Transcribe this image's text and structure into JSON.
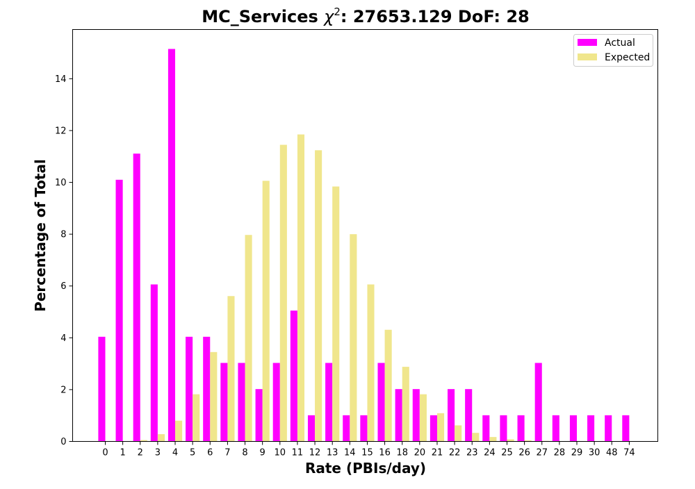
{
  "chart_data": {
    "type": "bar",
    "title": "MC_Services χ²: 27653.129 DoF: 28",
    "title_parts": {
      "prefix": "MC_Services ",
      "symbol": "χ",
      "superscript": "2",
      "suffix": ": 27653.129 DoF: 28"
    },
    "xlabel": "Rate (PBIs/day)",
    "ylabel": "Percentage of Total",
    "ylim": [
      0,
      15.9
    ],
    "yticks": [
      0,
      2,
      4,
      6,
      8,
      10,
      12,
      14
    ],
    "grid": false,
    "legend_position": "top-right",
    "categories": [
      "0",
      "1",
      "2",
      "3",
      "4",
      "5",
      "6",
      "7",
      "8",
      "9",
      "10",
      "11",
      "12",
      "13",
      "14",
      "15",
      "16",
      "18",
      "20",
      "21",
      "22",
      "23",
      "24",
      "25",
      "26",
      "27",
      "28",
      "29",
      "30",
      "48",
      "74"
    ],
    "series": [
      {
        "name": "Actual",
        "color": "#ff00ff",
        "values": [
          4.04,
          10.1,
          11.11,
          6.06,
          15.15,
          4.04,
          4.04,
          3.03,
          3.03,
          2.02,
          3.03,
          5.05,
          1.01,
          3.03,
          1.01,
          1.01,
          3.03,
          2.02,
          2.02,
          1.01,
          2.02,
          2.02,
          1.01,
          1.01,
          1.01,
          3.03,
          1.01,
          1.01,
          1.01,
          1.01,
          1.01
        ]
      },
      {
        "name": "Expected",
        "color": "#f0e68c",
        "values": [
          0.0,
          0.0,
          0.05,
          0.28,
          0.8,
          1.82,
          3.45,
          5.61,
          7.97,
          10.06,
          11.45,
          11.85,
          11.24,
          9.84,
          8.0,
          6.06,
          4.31,
          2.88,
          1.82,
          1.09,
          0.62,
          0.33,
          0.17,
          0.08,
          0.04,
          0.02,
          0.01,
          0.0,
          0.0,
          0.0,
          0.0
        ]
      }
    ]
  }
}
